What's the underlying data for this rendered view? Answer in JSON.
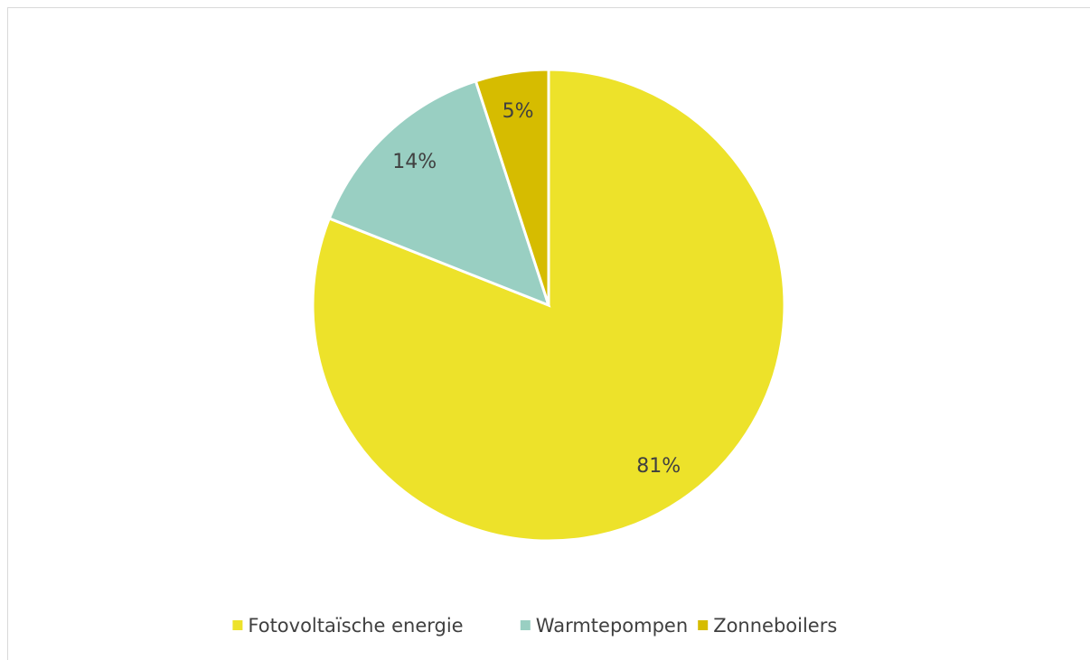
{
  "chart_data": {
    "type": "pie",
    "categories": [
      "Fotovoltaïsche energie",
      "Warmtepompen",
      "Zonneboilers"
    ],
    "values": [
      81,
      14,
      5
    ],
    "value_labels": [
      "81%",
      "14%",
      "5%"
    ],
    "colors": [
      "#ede22a",
      "#99cfc2",
      "#d6bc00"
    ],
    "legend": "bottom"
  }
}
